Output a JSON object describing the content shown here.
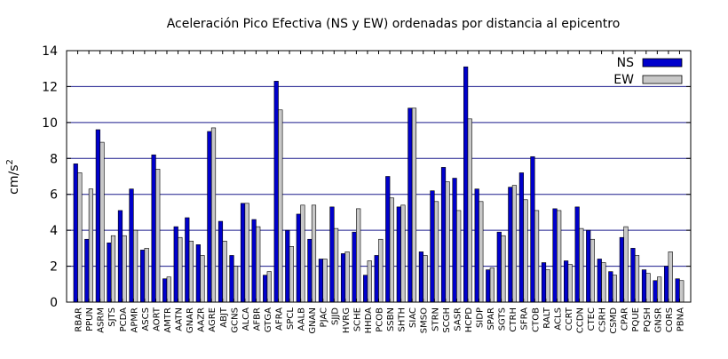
{
  "chart_data": {
    "type": "bar",
    "title": "Aceleración Pico Efectiva (NS y EW) ordenadas por distancia al epicentro",
    "xlabel": "",
    "ylabel_base": "cm/s",
    "ylabel_sup": "2",
    "ylim": [
      0,
      14
    ],
    "yticks": [
      0,
      2,
      4,
      6,
      8,
      10,
      12,
      14
    ],
    "grid": "horizontal",
    "legend_position": "top-right",
    "colors": {
      "NS": "#0000cc",
      "EW": "#c8c8c8",
      "grid": "#1a1a8c",
      "axis": "#000000"
    },
    "categories": [
      "RBAR",
      "PPUN",
      "ASRM",
      "SJTS",
      "PCDA",
      "APMR",
      "ASCS",
      "AORT",
      "AMTR",
      "AATN",
      "GNAR",
      "AAZR",
      "AGRE",
      "ABJT",
      "GCNS",
      "ALCA",
      "AFBR",
      "GTGA",
      "AFRA",
      "SPCL",
      "AALB",
      "GNAN",
      "PJAC",
      "SJJD",
      "HVRG",
      "SCHE",
      "HHDA",
      "PCOB",
      "SSBN",
      "SHTH",
      "SIAC",
      "SMSO",
      "STRN",
      "SCGH",
      "SASR",
      "HCPD",
      "SIDP",
      "SPAR",
      "SGTS",
      "CTRH",
      "SFRA",
      "CTOB",
      "RALT",
      "ACLS",
      "CCRT",
      "CCDN",
      "CTEC",
      "CSRH",
      "CSMD",
      "CPAR",
      "PQUE",
      "PQSH",
      "GNSR",
      "CORS",
      "PBNA"
    ],
    "series": [
      {
        "name": "NS",
        "values": [
          7.7,
          3.5,
          9.6,
          3.3,
          5.1,
          6.3,
          2.9,
          8.2,
          1.3,
          4.2,
          4.7,
          3.2,
          9.5,
          4.5,
          2.6,
          5.5,
          4.6,
          1.5,
          12.3,
          4.0,
          4.9,
          3.5,
          2.4,
          5.3,
          2.7,
          3.9,
          1.5,
          2.6,
          7.0,
          5.3,
          10.8,
          2.8,
          6.2,
          7.5,
          6.9,
          13.1,
          6.3,
          1.8,
          3.9,
          6.4,
          7.2,
          8.1,
          2.2,
          5.2,
          2.3,
          5.3,
          4.0,
          2.4,
          1.7,
          3.6,
          3.0,
          1.8,
          1.2,
          2.0,
          1.3
        ]
      },
      {
        "name": "EW",
        "values": [
          7.2,
          6.3,
          8.9,
          3.7,
          3.7,
          4.0,
          3.0,
          7.4,
          1.4,
          3.6,
          3.4,
          2.6,
          9.7,
          3.4,
          2.0,
          5.5,
          4.2,
          1.7,
          10.7,
          3.1,
          5.4,
          5.4,
          2.4,
          4.1,
          2.8,
          5.2,
          2.3,
          3.5,
          5.8,
          5.4,
          10.8,
          2.6,
          5.6,
          6.7,
          5.1,
          10.2,
          5.6,
          1.9,
          3.7,
          6.5,
          5.7,
          5.1,
          1.8,
          5.1,
          2.1,
          4.1,
          3.5,
          2.2,
          1.5,
          4.2,
          2.6,
          1.6,
          1.4,
          2.8,
          1.2
        ]
      }
    ]
  }
}
